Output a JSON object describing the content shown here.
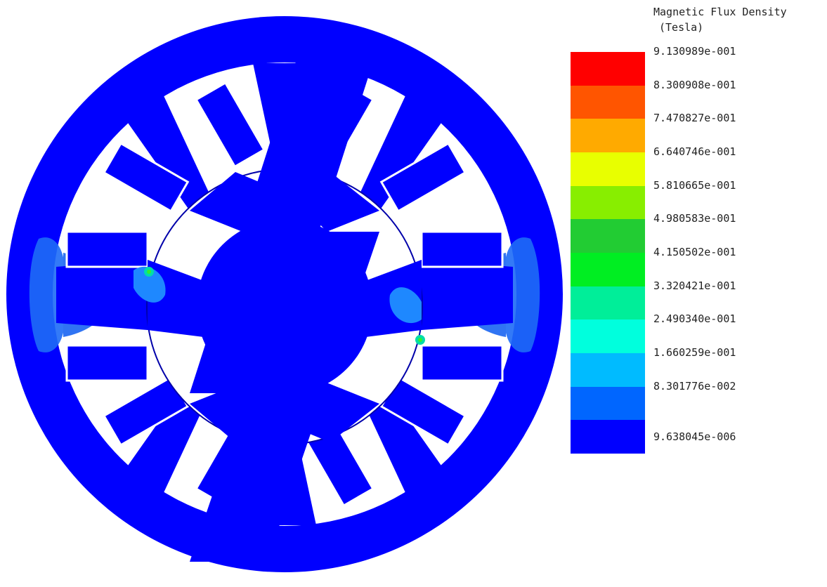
{
  "legend": {
    "title_line1": "Magnetic Flux Density",
    "title_line2": "(Tesla)",
    "labels": [
      "9.130989e-001",
      "8.300908e-001",
      "7.470827e-001",
      "6.640746e-001",
      "5.810665e-001",
      "4.980583e-001",
      "4.150502e-001",
      "3.320421e-001",
      "2.490340e-001",
      "1.660259e-001",
      "8.301776e-002",
      "9.638045e-006"
    ],
    "colors": [
      "#ff0000",
      "#ff5500",
      "#ffaa00",
      "#e8ff00",
      "#88ee00",
      "#22cc33",
      "#00ee22",
      "#00ee99",
      "#00ffdd",
      "#00bbff",
      "#0066ff",
      "#0000ff"
    ]
  },
  "colors": {
    "steel": "#0000ff",
    "low_field": "#0a5cf5",
    "mid_field": "#1e88ff",
    "air": "#ffffff",
    "hotspot": "#22dd44"
  }
}
